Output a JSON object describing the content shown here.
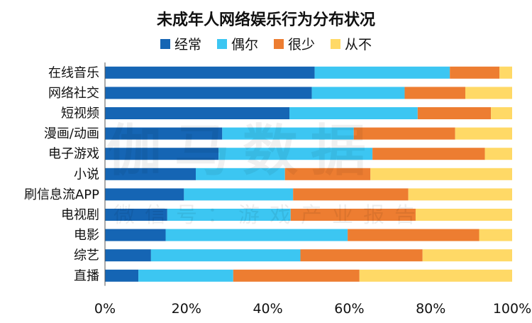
{
  "watermark": {
    "main": "伽马数据",
    "sub": "微信号：游戏产业报告"
  },
  "chart_data": {
    "type": "bar",
    "orientation": "horizontal",
    "stacked": true,
    "title": "未成年人网络娱乐行为分布状况",
    "legend_position": "top",
    "categories": [
      "在线音乐",
      "网络社交",
      "短视频",
      "漫画/动画",
      "电子游戏",
      "小说",
      "刷信息流APP",
      "电视剧",
      "电影",
      "综艺",
      "直播"
    ],
    "series": [
      {
        "name": "经常",
        "color": "#1565b4",
        "values": [
          51.5,
          50.8,
          45.3,
          28.8,
          27.9,
          22.3,
          19.4,
          15.3,
          14.9,
          11.3,
          8.2
        ]
      },
      {
        "name": "偶尔",
        "color": "#3cc6f2",
        "values": [
          33.2,
          22.8,
          31.5,
          32.3,
          37.8,
          21.9,
          26.8,
          30.3,
          44.7,
          36.7,
          23.3
        ]
      },
      {
        "name": "很少",
        "color": "#ed7d31",
        "values": [
          12.2,
          14.9,
          18.0,
          24.9,
          27.6,
          21.0,
          28.3,
          30.7,
          32.3,
          30.0,
          31.0
        ]
      },
      {
        "name": "从不",
        "color": "#ffd966",
        "values": [
          3.1,
          11.5,
          5.2,
          14.0,
          6.7,
          34.8,
          25.5,
          23.7,
          8.1,
          22.0,
          37.5
        ]
      }
    ],
    "x_ticks": [
      "0%",
      "20%",
      "40%",
      "60%",
      "80%",
      "100%"
    ],
    "xlim": [
      0,
      100
    ],
    "grid": false
  }
}
